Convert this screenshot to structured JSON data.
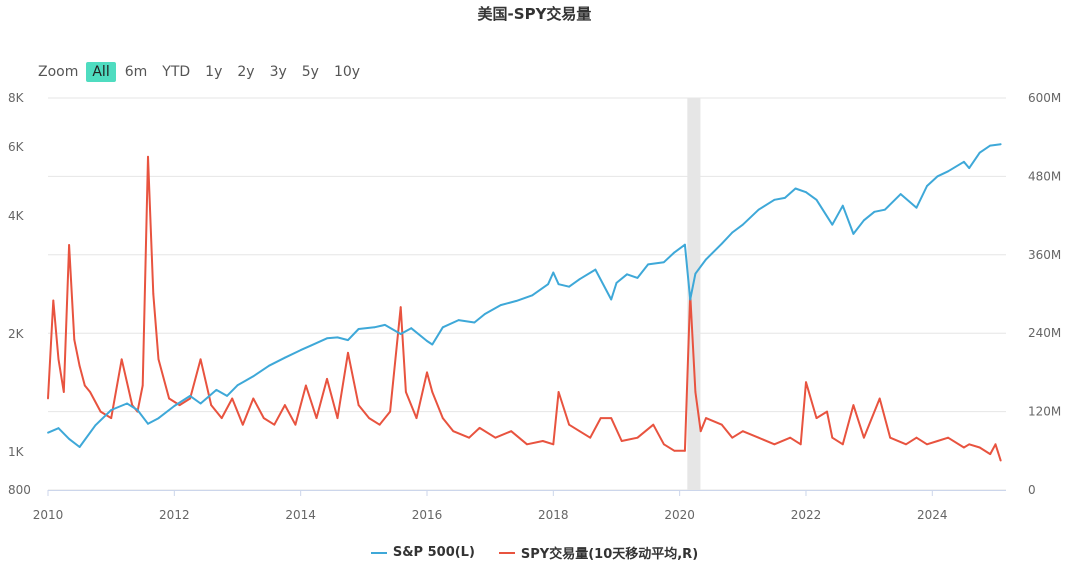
{
  "title": "美国-SPY交易量",
  "zoom": {
    "label": "Zoom",
    "buttons": [
      "All",
      "6m",
      "YTD",
      "1y",
      "2y",
      "3y",
      "5y",
      "10y"
    ],
    "active": "All"
  },
  "colors": {
    "spx": "#3ea8d8",
    "volume": "#e8533f",
    "band": "#e6e6e6",
    "grid": "#e6e6e6"
  },
  "chart_data": {
    "type": "line",
    "title": "美国-SPY交易量",
    "x_range": [
      "2010-01-01",
      "2025-03-01"
    ],
    "x_ticks": [
      "2010",
      "2012",
      "2014",
      "2016",
      "2018",
      "2020",
      "2022",
      "2024"
    ],
    "left_axis": {
      "scale": "log",
      "range": [
        800,
        8000
      ],
      "ticks": [
        "800",
        "1K",
        "2K",
        "4K",
        "6K",
        "8K"
      ]
    },
    "right_axis": {
      "scale": "linear",
      "range": [
        0,
        600
      ],
      "ticks": [
        "0",
        "120M",
        "240M",
        "360M",
        "480M",
        "600M"
      ]
    },
    "shaded_band": [
      "2020-02-15",
      "2020-04-30"
    ],
    "legend_position": "bottom",
    "grid": true,
    "series": [
      {
        "name": "S&P 500(L)",
        "axis": "left",
        "x": [
          "2010-01",
          "2010-03",
          "2010-05",
          "2010-07",
          "2010-10",
          "2011-01",
          "2011-04",
          "2011-06",
          "2011-08",
          "2011-10",
          "2012-01",
          "2012-04",
          "2012-06",
          "2012-09",
          "2012-11",
          "2013-01",
          "2013-04",
          "2013-07",
          "2013-10",
          "2014-01",
          "2014-03",
          "2014-06",
          "2014-08",
          "2014-10",
          "2014-12",
          "2015-03",
          "2015-05",
          "2015-08",
          "2015-10",
          "2016-01",
          "2016-02",
          "2016-04",
          "2016-07",
          "2016-10",
          "2016-12",
          "2017-03",
          "2017-06",
          "2017-09",
          "2017-12",
          "2018-01",
          "2018-02",
          "2018-04",
          "2018-06",
          "2018-09",
          "2018-12",
          "2019-01",
          "2019-03",
          "2019-05",
          "2019-07",
          "2019-10",
          "2019-12",
          "2020-02",
          "2020-03",
          "2020-04",
          "2020-06",
          "2020-09",
          "2020-11",
          "2021-01",
          "2021-04",
          "2021-07",
          "2021-09",
          "2021-11",
          "2022-01",
          "2022-03",
          "2022-06",
          "2022-08",
          "2022-10",
          "2022-12",
          "2023-02",
          "2023-04",
          "2023-07",
          "2023-10",
          "2023-12",
          "2024-02",
          "2024-04",
          "2024-07",
          "2024-08",
          "2024-10",
          "2024-12",
          "2025-02"
        ],
        "values": [
          1120,
          1150,
          1080,
          1030,
          1170,
          1280,
          1330,
          1280,
          1180,
          1220,
          1310,
          1390,
          1330,
          1440,
          1390,
          1480,
          1560,
          1660,
          1740,
          1820,
          1870,
          1950,
          1960,
          1930,
          2060,
          2080,
          2110,
          2000,
          2070,
          1920,
          1880,
          2080,
          2170,
          2140,
          2250,
          2370,
          2430,
          2510,
          2680,
          2870,
          2680,
          2640,
          2760,
          2920,
          2450,
          2700,
          2840,
          2780,
          3010,
          3050,
          3230,
          3380,
          2450,
          2850,
          3100,
          3400,
          3630,
          3800,
          4150,
          4400,
          4450,
          4700,
          4600,
          4400,
          3800,
          4250,
          3600,
          3900,
          4100,
          4150,
          4550,
          4200,
          4770,
          5050,
          5200,
          5500,
          5300,
          5800,
          6050,
          6100
        ]
      },
      {
        "name": "SPY交易量(10天移动平均,R)",
        "axis": "right",
        "x": [
          "2010-01",
          "2010-02",
          "2010-03",
          "2010-04",
          "2010-05",
          "2010-06",
          "2010-07",
          "2010-08",
          "2010-09",
          "2010-11",
          "2011-01",
          "2011-03",
          "2011-05",
          "2011-06",
          "2011-07",
          "2011-08",
          "2011-09",
          "2011-10",
          "2011-12",
          "2012-02",
          "2012-04",
          "2012-06",
          "2012-08",
          "2012-10",
          "2012-12",
          "2013-02",
          "2013-04",
          "2013-06",
          "2013-08",
          "2013-10",
          "2013-12",
          "2014-02",
          "2014-04",
          "2014-06",
          "2014-08",
          "2014-10",
          "2014-12",
          "2015-02",
          "2015-04",
          "2015-06",
          "2015-08",
          "2015-09",
          "2015-11",
          "2016-01",
          "2016-02",
          "2016-04",
          "2016-06",
          "2016-09",
          "2016-11",
          "2017-02",
          "2017-05",
          "2017-08",
          "2017-11",
          "2018-01",
          "2018-02",
          "2018-04",
          "2018-06",
          "2018-08",
          "2018-10",
          "2018-12",
          "2019-02",
          "2019-05",
          "2019-08",
          "2019-10",
          "2019-12",
          "2020-02",
          "2020-03",
          "2020-04",
          "2020-05",
          "2020-06",
          "2020-09",
          "2020-11",
          "2021-01",
          "2021-04",
          "2021-07",
          "2021-10",
          "2021-12",
          "2022-01",
          "2022-03",
          "2022-05",
          "2022-06",
          "2022-08",
          "2022-10",
          "2022-12",
          "2023-03",
          "2023-05",
          "2023-08",
          "2023-10",
          "2023-12",
          "2024-02",
          "2024-04",
          "2024-07",
          "2024-08",
          "2024-10",
          "2024-12",
          "2025-01",
          "2025-02"
        ],
        "values": [
          140,
          290,
          200,
          150,
          375,
          230,
          190,
          160,
          150,
          120,
          110,
          200,
          130,
          120,
          160,
          510,
          300,
          200,
          140,
          130,
          140,
          200,
          130,
          110,
          140,
          100,
          140,
          110,
          100,
          130,
          100,
          160,
          110,
          170,
          110,
          210,
          130,
          110,
          100,
          120,
          280,
          150,
          110,
          180,
          150,
          110,
          90,
          80,
          95,
          80,
          90,
          70,
          75,
          70,
          150,
          100,
          90,
          80,
          110,
          110,
          75,
          80,
          100,
          70,
          60,
          60,
          300,
          150,
          90,
          110,
          100,
          80,
          90,
          80,
          70,
          80,
          70,
          165,
          110,
          120,
          80,
          70,
          130,
          80,
          140,
          80,
          70,
          80,
          70,
          75,
          80,
          65,
          70,
          65,
          55,
          70,
          45
        ]
      }
    ]
  },
  "legend": [
    {
      "label": "S&P 500(L)",
      "color": "#3ea8d8"
    },
    {
      "label": "SPY交易量(10天移动平均,R)",
      "color": "#e8533f"
    }
  ]
}
